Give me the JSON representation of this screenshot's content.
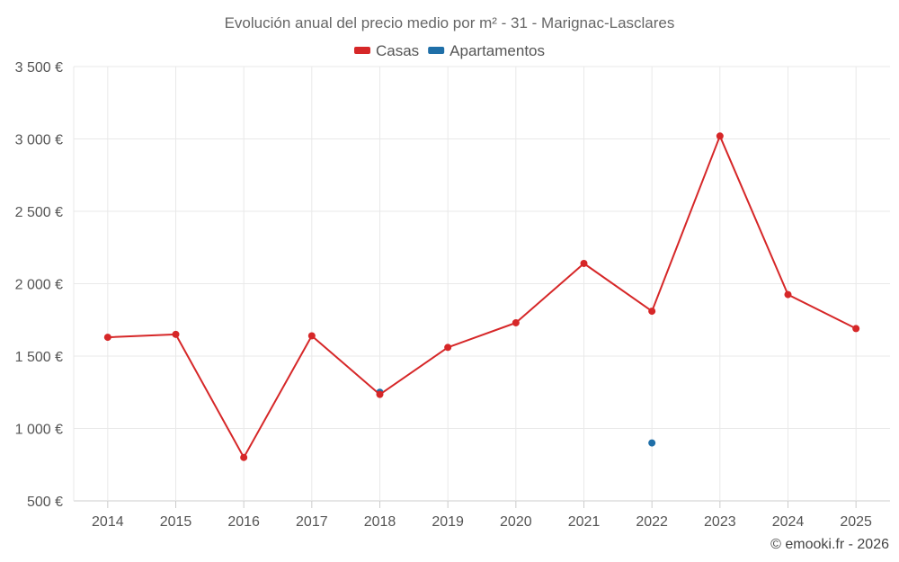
{
  "chart_data": {
    "type": "line",
    "title": "Evolución anual del precio medio por m² - 31 - Marignac-Lasclares",
    "categories": [
      "2014",
      "2015",
      "2016",
      "2017",
      "2018",
      "2019",
      "2020",
      "2021",
      "2022",
      "2023",
      "2024",
      "2025"
    ],
    "series": [
      {
        "name": "Casas",
        "color": "#d62728",
        "values": [
          1630,
          1650,
          800,
          1640,
          1235,
          1560,
          1730,
          2140,
          1810,
          3020,
          1925,
          1690
        ]
      },
      {
        "name": "Apartamentos",
        "color": "#1f6fa8",
        "values": [
          null,
          null,
          null,
          null,
          1250,
          null,
          null,
          null,
          900,
          null,
          null,
          null
        ]
      }
    ],
    "ylim": [
      500,
      3500
    ],
    "yticks": [
      500,
      1000,
      1500,
      2000,
      2500,
      3000,
      3500
    ],
    "ytick_labels": [
      "500 €",
      "1 000 €",
      "1 500 €",
      "2 000 €",
      "2 500 €",
      "3 000 €",
      "3 500 €"
    ],
    "xlabel": "",
    "ylabel": "",
    "grid": true,
    "legend_position": "top-center"
  },
  "credit": "© emooki.fr - 2026"
}
